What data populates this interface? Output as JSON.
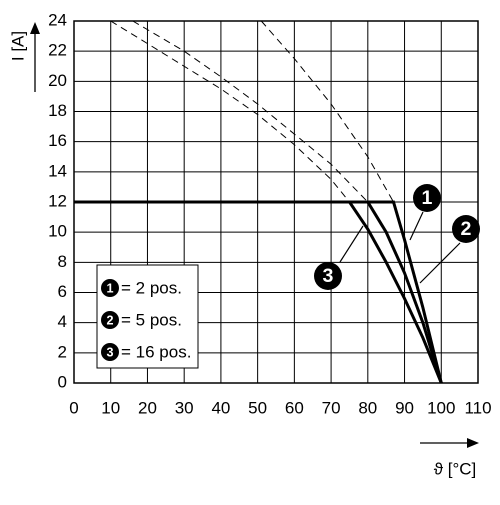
{
  "chart_data": {
    "type": "line",
    "y_label": "I [A]",
    "x_label": "ϑ [°C]",
    "xlim": [
      0,
      110
    ],
    "ylim": [
      0,
      24
    ],
    "xticks": [
      0,
      10,
      20,
      30,
      40,
      50,
      60,
      70,
      80,
      90,
      100,
      110
    ],
    "yticks": [
      0,
      2,
      4,
      6,
      8,
      10,
      12,
      14,
      16,
      18,
      20,
      22,
      24
    ],
    "grid": true,
    "color": "#000000",
    "series": [
      {
        "marker": "1",
        "name": "= 2 pos.",
        "x": [
          0,
          87,
          90,
          95,
          100
        ],
        "values": [
          12,
          12,
          9.5,
          5,
          0
        ],
        "dashed_x": [
          51,
          60,
          70,
          80,
          87
        ],
        "dashed_values": [
          24,
          21.5,
          18.5,
          15,
          12
        ]
      },
      {
        "marker": "2",
        "name": "= 5 pos.",
        "x": [
          0,
          80,
          85,
          90,
          95,
          100
        ],
        "values": [
          12,
          12,
          10,
          7.3,
          4,
          0
        ],
        "dashed_x": [
          16,
          30,
          40,
          50,
          60,
          70,
          80
        ],
        "dashed_values": [
          24,
          22,
          20.3,
          18.5,
          16.5,
          14.5,
          12
        ]
      },
      {
        "marker": "3",
        "name": "= 16 pos.",
        "x": [
          0,
          75,
          80,
          85,
          90,
          95,
          100
        ],
        "values": [
          12,
          12,
          10.2,
          8,
          5.6,
          3,
          0
        ],
        "dashed_x": [
          10,
          20,
          30,
          40,
          50,
          60,
          70,
          75
        ],
        "dashed_values": [
          24,
          22.5,
          21,
          19.5,
          17.8,
          15.8,
          13.5,
          12
        ]
      }
    ]
  }
}
